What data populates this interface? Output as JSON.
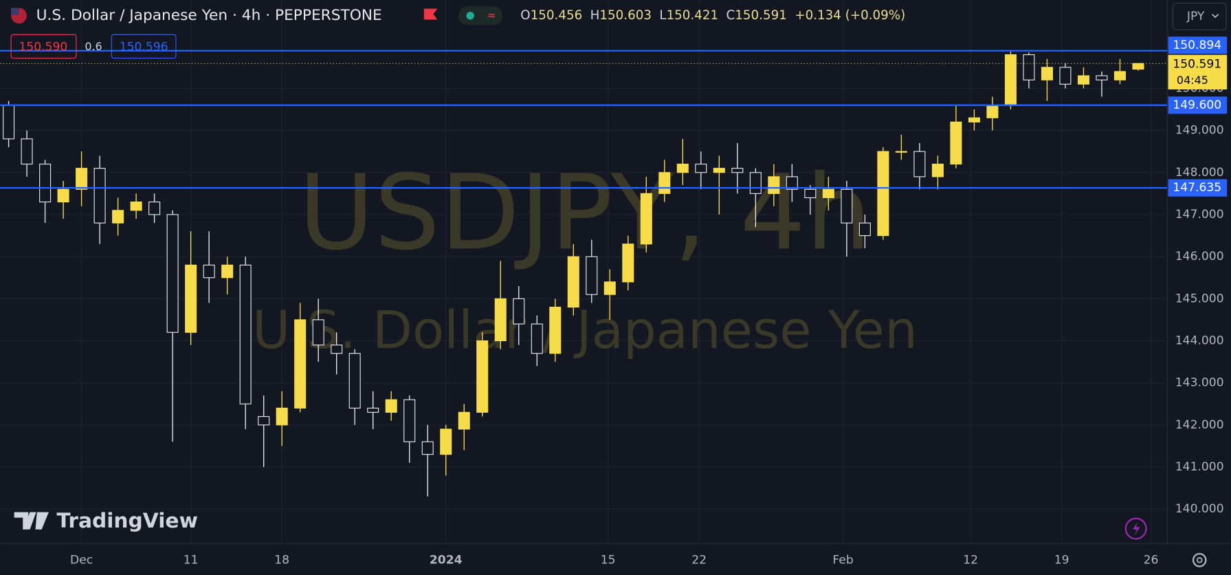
{
  "header": {
    "symbol": "U.S. Dollar / Japanese Yen · 4h · PEPPERSTONE",
    "ohlc_labels": [
      "O",
      "H",
      "L",
      "C"
    ],
    "change": "+0.134 (+0.09%)",
    "sell": "150.590",
    "spread": "0.6",
    "buy": "150.596",
    "currency": "JPY"
  },
  "watermark": {
    "ticker": "USDJPY, 4h",
    "name": "U.S. Dollar / Japanese Yen"
  },
  "logo": "TradingView",
  "chart_data": {
    "type": "candlestick",
    "open": [
      149.6,
      148.8,
      148.2,
      147.3,
      147.6,
      148.1,
      146.8,
      147.1,
      147.3,
      147.0,
      144.2,
      145.8,
      145.5,
      145.8,
      142.2,
      142.0,
      142.4,
      144.5,
      143.9,
      143.7,
      142.4,
      142.3,
      142.6,
      141.6,
      141.3,
      141.9,
      142.3,
      144.0,
      145.0,
      144.4,
      143.7,
      144.8,
      146.0,
      145.1,
      145.4,
      146.3,
      147.5,
      148.0,
      148.2,
      148.0,
      148.1,
      148.0,
      147.5,
      147.9,
      147.6,
      147.4,
      147.6,
      146.8,
      146.5,
      148.5,
      148.5,
      147.9,
      148.2,
      149.2,
      149.3,
      149.6,
      150.8,
      150.2,
      150.5,
      150.1,
      150.3,
      150.2,
      150.456
    ],
    "high": [
      149.7,
      149.0,
      148.3,
      147.8,
      148.5,
      148.4,
      147.4,
      147.5,
      147.5,
      147.1,
      146.6,
      146.6,
      146.0,
      146.0,
      142.7,
      142.8,
      144.9,
      145.0,
      144.2,
      143.8,
      142.8,
      142.8,
      142.7,
      142.0,
      142.0,
      142.5,
      144.2,
      145.9,
      145.3,
      144.6,
      145.0,
      146.3,
      146.4,
      145.7,
      146.5,
      147.9,
      148.3,
      148.8,
      148.5,
      148.4,
      148.7,
      148.1,
      148.2,
      148.2,
      147.7,
      147.9,
      147.8,
      147.0,
      148.6,
      148.9,
      148.7,
      148.4,
      149.6,
      149.5,
      149.8,
      150.9,
      150.85,
      150.7,
      150.6,
      150.5,
      150.4,
      150.7,
      150.603
    ],
    "low": [
      148.6,
      147.9,
      146.8,
      146.9,
      147.2,
      146.3,
      146.5,
      146.9,
      146.8,
      141.6,
      143.9,
      144.9,
      145.1,
      141.9,
      141.0,
      141.5,
      142.3,
      143.5,
      143.2,
      142.0,
      141.9,
      142.1,
      141.1,
      140.3,
      140.8,
      141.4,
      142.2,
      143.8,
      143.9,
      143.4,
      143.5,
      144.6,
      144.9,
      144.5,
      145.2,
      146.1,
      147.3,
      147.7,
      147.6,
      147.0,
      147.5,
      146.7,
      147.2,
      147.3,
      147.0,
      147.1,
      146.0,
      146.2,
      146.4,
      148.3,
      147.6,
      147.6,
      148.1,
      149.0,
      149.0,
      149.5,
      150.0,
      149.7,
      150.0,
      150.0,
      149.8,
      150.1,
      150.421
    ],
    "close": [
      148.8,
      148.2,
      147.3,
      147.6,
      148.1,
      146.8,
      147.1,
      147.3,
      147.0,
      144.2,
      145.8,
      145.5,
      145.8,
      142.5,
      142.0,
      142.4,
      144.5,
      143.9,
      143.7,
      142.4,
      142.3,
      142.6,
      141.6,
      141.3,
      141.9,
      142.3,
      144.0,
      145.0,
      144.4,
      143.7,
      144.8,
      146.0,
      145.1,
      145.4,
      146.3,
      147.5,
      148.0,
      148.2,
      148.0,
      148.1,
      148.0,
      147.5,
      147.9,
      147.6,
      147.4,
      147.6,
      146.8,
      146.5,
      148.5,
      148.5,
      147.9,
      148.2,
      149.2,
      149.3,
      149.6,
      150.8,
      150.2,
      150.5,
      150.1,
      150.3,
      150.2,
      150.4,
      150.591
    ],
    "xlim": [
      -0.47,
      63.6
    ],
    "xticks": [
      {
        "value": 4,
        "label": "Dec"
      },
      {
        "value": 10,
        "label": "11"
      },
      {
        "value": 15,
        "label": "18"
      },
      {
        "value": 24,
        "label": "2024"
      },
      {
        "value": 32.9,
        "label": "15"
      },
      {
        "value": 37.9,
        "label": "22"
      },
      {
        "value": 45.8,
        "label": "Feb"
      },
      {
        "value": 52.8,
        "label": "12"
      },
      {
        "value": 57.8,
        "label": "19"
      },
      {
        "value": 62.7,
        "label": "26"
      }
    ],
    "ylim": [
      139.18,
      152.1
    ],
    "yticks": [
      {
        "value": 140,
        "label": "140.000"
      },
      {
        "value": 141,
        "label": "141.000"
      },
      {
        "value": 142,
        "label": "142.000"
      },
      {
        "value": 143,
        "label": "143.000"
      },
      {
        "value": 144,
        "label": "144.000"
      },
      {
        "value": 145,
        "label": "145.000"
      },
      {
        "value": 146,
        "label": "146.000"
      },
      {
        "value": 147,
        "label": "147.000"
      },
      {
        "value": 148,
        "label": "148.000"
      },
      {
        "value": 149,
        "label": "149.000"
      },
      {
        "value": 150,
        "label": "150.000"
      }
    ],
    "grid": true,
    "up_color": "#f7dc4a",
    "down_color": "#e6e6e6",
    "hlines": [
      {
        "value": 150.894,
        "label": "150.894",
        "color": "#2962ff"
      },
      {
        "value": 149.6,
        "label": "149.600",
        "color": "#2962ff"
      },
      {
        "value": 147.635,
        "label": "147.635",
        "color": "#2962ff"
      }
    ],
    "countdown": "04:45"
  }
}
